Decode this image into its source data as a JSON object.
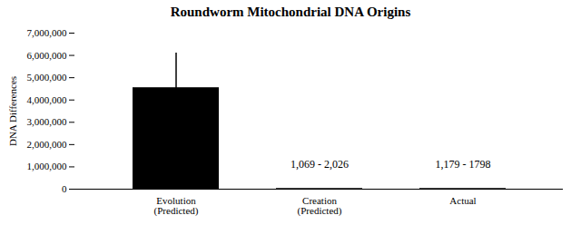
{
  "chart_data": {
    "type": "bar",
    "title": "Roundworm Mitochondrial DNA Origins",
    "ylabel": "DNA Differences",
    "categories": [
      "Evolution\n(Predicted)",
      "Creation\n(Predicted)",
      "Actual"
    ],
    "values": [
      4550000,
      30000,
      30000
    ],
    "error_upper": [
      1550000,
      null,
      null
    ],
    "error_lower": [
      1450000,
      null,
      null
    ],
    "annotations": [
      {
        "category": "Creation\n(Predicted)",
        "y": 950000,
        "text": "1,069 - 2,026"
      },
      {
        "category": "Actual",
        "y": 950000,
        "text": "1,179 - 1798"
      }
    ],
    "ylim": [
      0,
      7000000
    ],
    "yticks": [
      0,
      {
        "value": 1000000,
        "label": "1,000,000"
      },
      {
        "value": 2000000,
        "label": "2,000,000"
      },
      {
        "value": 3000000,
        "label": "3,000,000"
      },
      {
        "value": 4000000,
        "label": "4,000,000"
      },
      {
        "value": 5000000,
        "label": "5,000,000"
      },
      {
        "value": 6000000,
        "label": "6,000,000"
      },
      {
        "value": 7000000,
        "label": "7,000,000"
      }
    ],
    "grid": false
  }
}
